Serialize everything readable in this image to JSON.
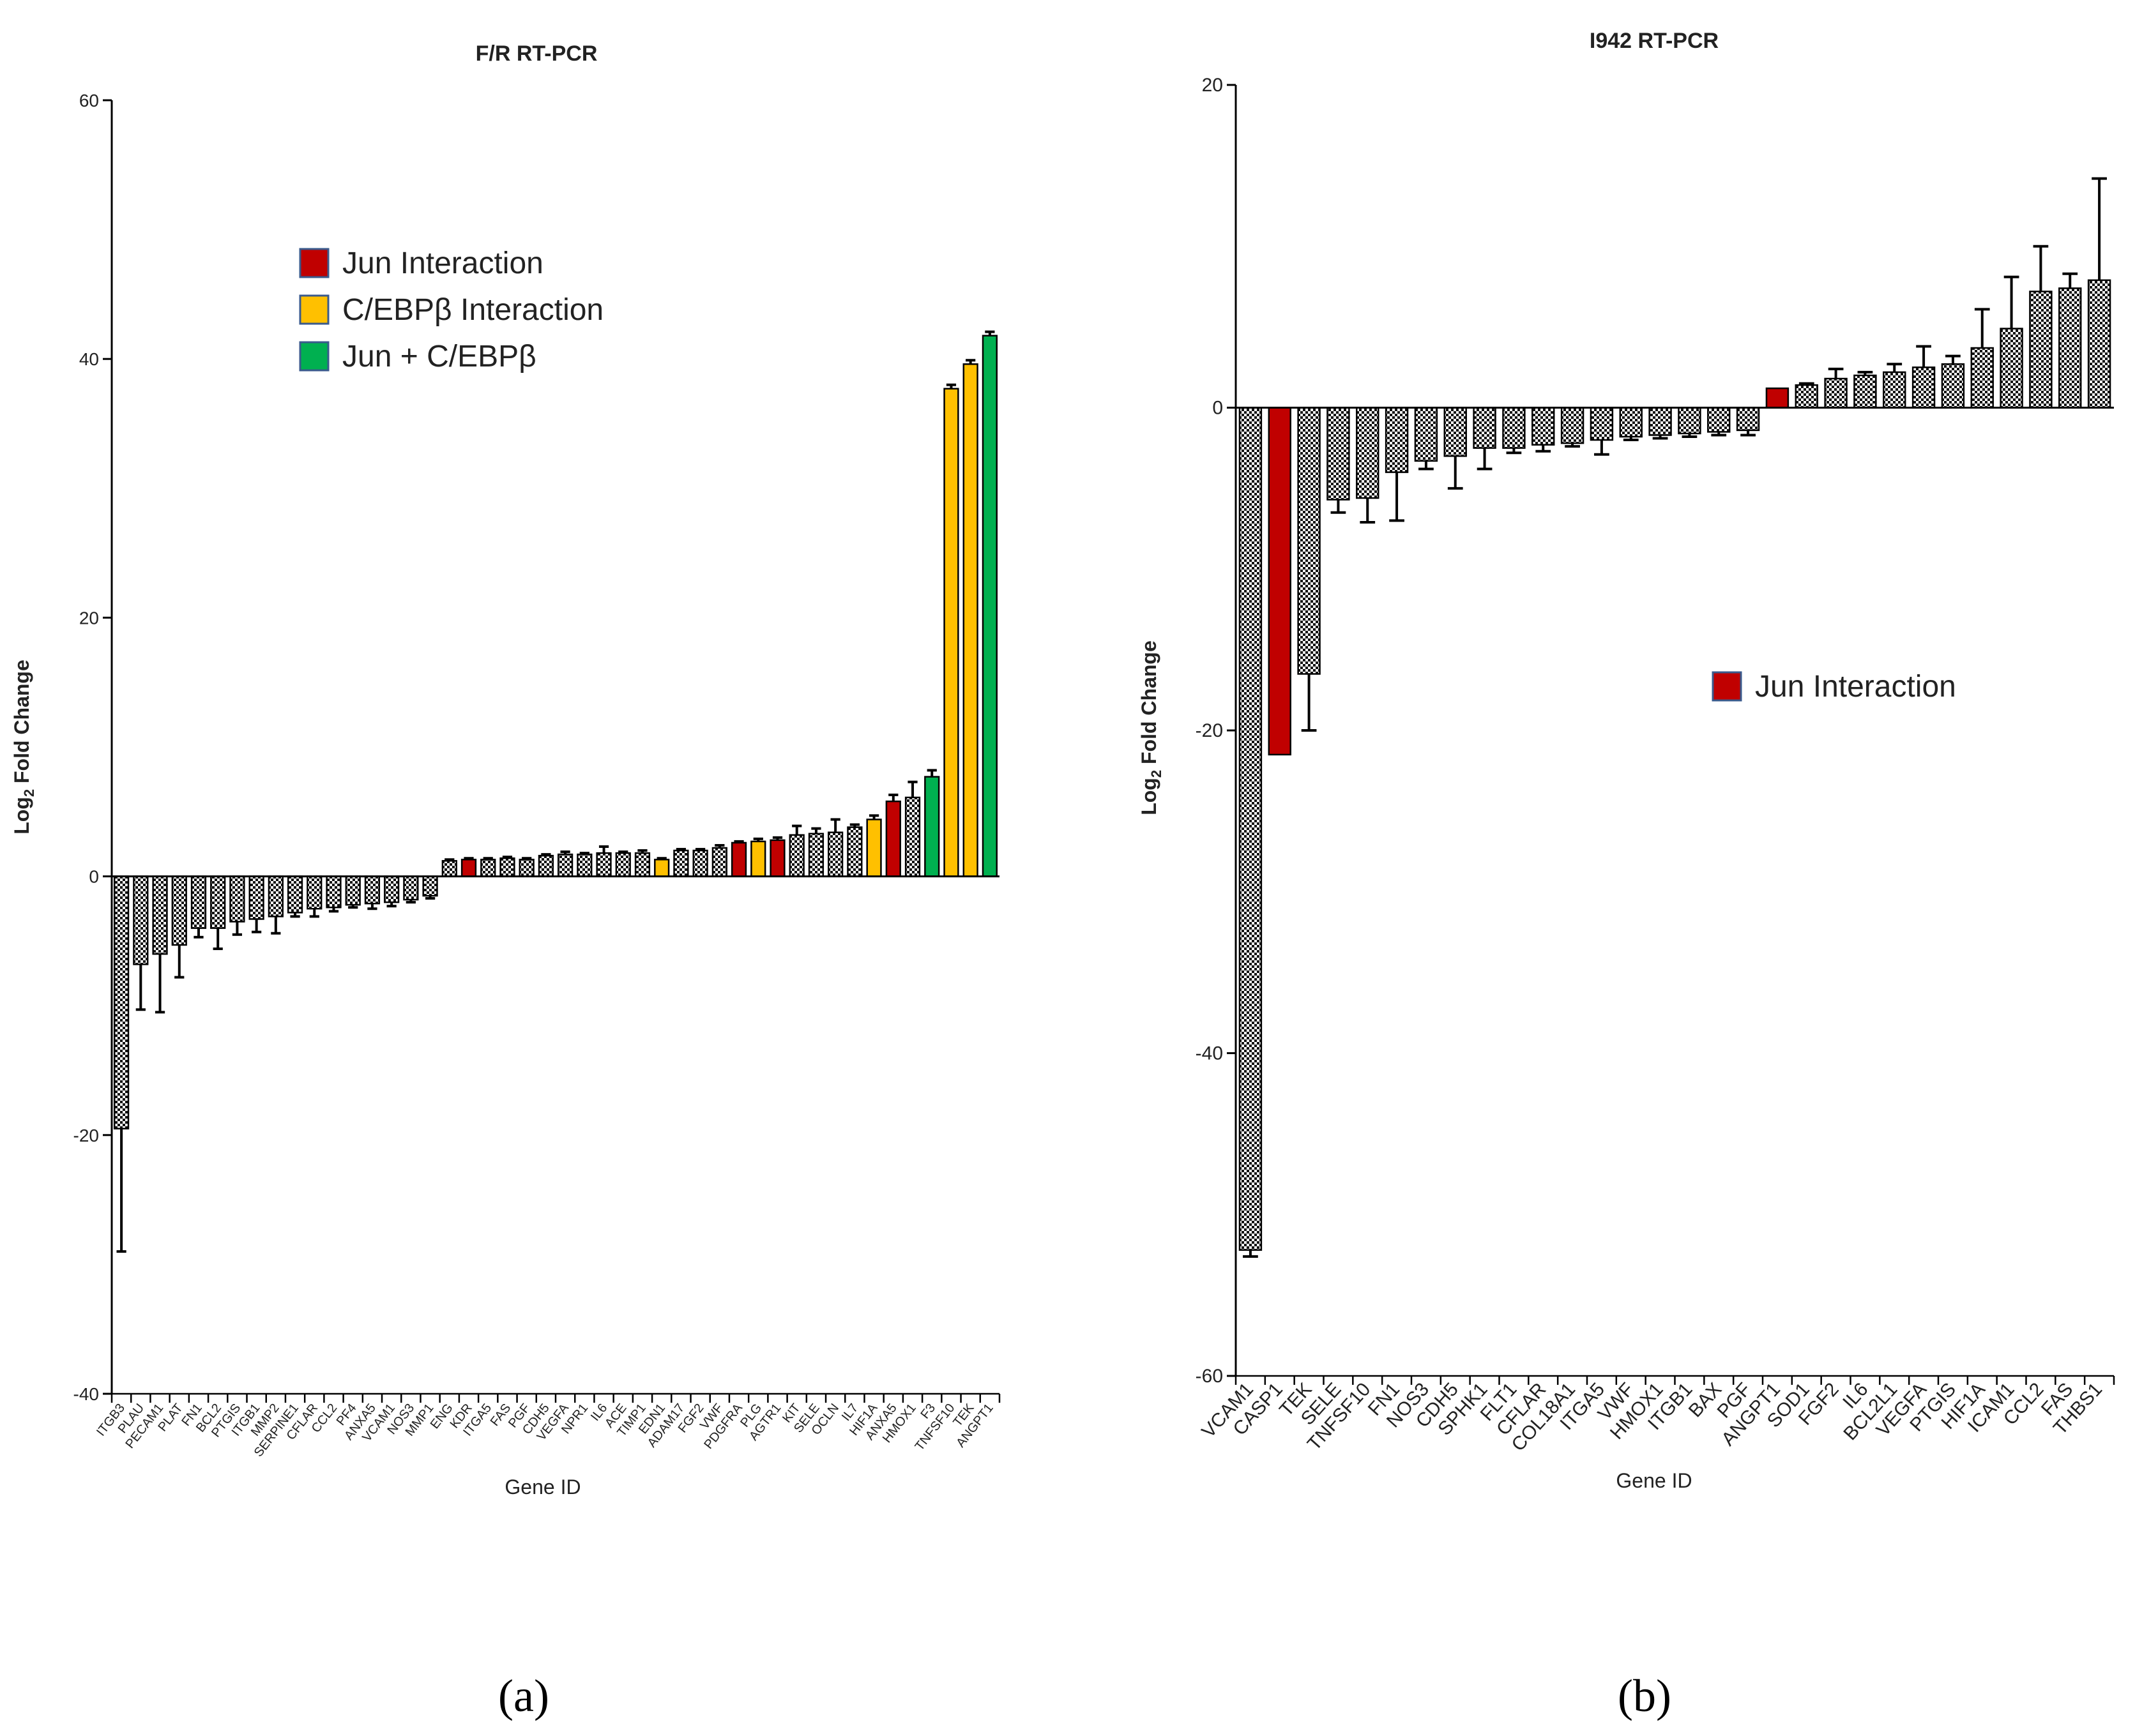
{
  "chart_data": [
    {
      "type": "bar",
      "title": "F/R RT-PCR",
      "xlabel": "Gene ID",
      "ylabel": "Log2 Fold Change",
      "ylabel_main": "Log",
      "ylabel_sub": "2",
      "ylabel_rest": " Fold Change",
      "ylim": [
        -40,
        60
      ],
      "yticks": [
        "-40",
        "-20",
        "0",
        "20",
        "40",
        "60"
      ],
      "categories": [
        "ITGB3",
        "PLAU",
        "PECAM1",
        "PLAT",
        "FN1",
        "BCL2",
        "PTGIS",
        "ITGB1",
        "MMP2",
        "SERPINE1",
        "CFLAR",
        "CCL2",
        "PF4",
        "ANXA5",
        "VCAM1",
        "NOS3",
        "MMP1",
        "ENG",
        "KDR",
        "ITGA5",
        "FAS",
        "PGF",
        "CDH5",
        "VEGFA",
        "NPR1",
        "IL6",
        "ACE",
        "TIMP1",
        "EDN1",
        "ADAM17",
        "FGF2",
        "VWF",
        "PDGFRA",
        "PLG",
        "AGTR1",
        "KIT",
        "SELE",
        "OCLN",
        "IL7",
        "HIF1A",
        "ANXA5",
        "HMOX1",
        "F3",
        "TNFSF10",
        "TEK",
        "ANGPT1"
      ],
      "values": [
        -19.5,
        -6.8,
        -6,
        -5.3,
        -4,
        -4,
        -3.5,
        -3.3,
        -3.1,
        -2.8,
        -2.5,
        -2.4,
        -2.2,
        -2.1,
        -2,
        -1.8,
        -1.5,
        1.2,
        1.3,
        1.3,
        1.4,
        1.3,
        1.6,
        1.7,
        1.7,
        1.8,
        1.8,
        1.8,
        1.3,
        2,
        2,
        2.2,
        2.6,
        2.7,
        2.8,
        3.2,
        3.3,
        3.4,
        3.8,
        4.4,
        5.8,
        6.1,
        7.7,
        37.7,
        39.6,
        41.8
      ],
      "errors": [
        9.5,
        3.5,
        4.5,
        2.5,
        0.7,
        1.6,
        1,
        1,
        1.3,
        0.3,
        0.6,
        0.3,
        0.2,
        0.4,
        0.3,
        0.2,
        0.2,
        0.1,
        0.1,
        0.1,
        0.1,
        0.1,
        0.1,
        0.2,
        0.1,
        0.5,
        0.1,
        0.2,
        0.1,
        0.1,
        0.1,
        0.2,
        0.1,
        0.2,
        0.2,
        0.7,
        0.4,
        1,
        0.2,
        0.3,
        0.5,
        1.2,
        0.5,
        0.3,
        0.3,
        0.3
      ],
      "highlight": [
        "none",
        "none",
        "none",
        "none",
        "none",
        "none",
        "none",
        "none",
        "none",
        "none",
        "none",
        "none",
        "none",
        "none",
        "none",
        "none",
        "none",
        "none",
        "jun",
        "none",
        "none",
        "none",
        "none",
        "none",
        "none",
        "none",
        "none",
        "none",
        "cebp",
        "none",
        "none",
        "none",
        "jun",
        "cebp",
        "jun",
        "none",
        "none",
        "none",
        "none",
        "cebp",
        "jun",
        "none",
        "both",
        "cebp",
        "cebp",
        "both"
      ],
      "legend": [
        {
          "label": "Jun Interaction",
          "key": "jun",
          "color": "#c00000"
        },
        {
          "label": "C/EBPβ Interaction",
          "key": "cebp",
          "color": "#ffc000"
        },
        {
          "label": "Jun + C/EBPβ",
          "key": "both",
          "color": "#00b050"
        }
      ],
      "legend_position": "upper-middle",
      "caption": "(a)"
    },
    {
      "type": "bar",
      "title": "I942 RT-PCR",
      "xlabel": "Gene ID",
      "ylabel": "Log2 Fold Change",
      "ylabel_main": "Log",
      "ylabel_sub": "2",
      "ylabel_rest": " Fold Change",
      "ylim": [
        -60,
        20
      ],
      "yticks": [
        "-60",
        "-40",
        "-20",
        "0",
        "20"
      ],
      "categories": [
        "VCAM1",
        "CASP1",
        "TEK",
        "SELE",
        "TNFSF10",
        "FN1",
        "NOS3",
        "CDH5",
        "SPHK1",
        "FLT1",
        "CFLAR",
        "COL18A1",
        "ITGA5",
        "VWF",
        "HMOX1",
        "ITGB1",
        "BAX",
        "PGF",
        "ANGPT1",
        "SOD1",
        "FGF2",
        "IL6",
        "BCL2L1",
        "VEGFA",
        "PTGIS",
        "HIF1A",
        "ICAM1",
        "CCL2",
        "FAS",
        "THBS1"
      ],
      "values": [
        -52.2,
        -21.5,
        -16.5,
        -5.7,
        -5.6,
        -4,
        -3.3,
        -3,
        -2.5,
        -2.5,
        -2.3,
        -2.2,
        -2,
        -1.8,
        -1.7,
        -1.6,
        -1.5,
        -1.4,
        1.2,
        1.4,
        1.8,
        2,
        2.2,
        2.5,
        2.7,
        3.7,
        4.9,
        7.2,
        7.4,
        7.9
      ],
      "errors": [
        0.4,
        0,
        3.5,
        0.8,
        1.5,
        3,
        0.5,
        2,
        1.3,
        0.3,
        0.4,
        0.2,
        0.9,
        0.2,
        0.2,
        0.2,
        0.2,
        0.3,
        0,
        0.1,
        0.6,
        0.2,
        0.5,
        1.3,
        0.5,
        2.4,
        3.2,
        2.8,
        0.9,
        6.3
      ],
      "highlight": [
        "none",
        "jun",
        "none",
        "none",
        "none",
        "none",
        "none",
        "none",
        "none",
        "none",
        "none",
        "none",
        "none",
        "none",
        "none",
        "none",
        "none",
        "none",
        "jun",
        "none",
        "none",
        "none",
        "none",
        "none",
        "none",
        "none",
        "none",
        "none",
        "none",
        "none"
      ],
      "legend": [
        {
          "label": "Jun Interaction",
          "key": "jun",
          "color": "#c00000"
        }
      ],
      "legend_position": "middle-right",
      "caption": "(b)"
    }
  ]
}
